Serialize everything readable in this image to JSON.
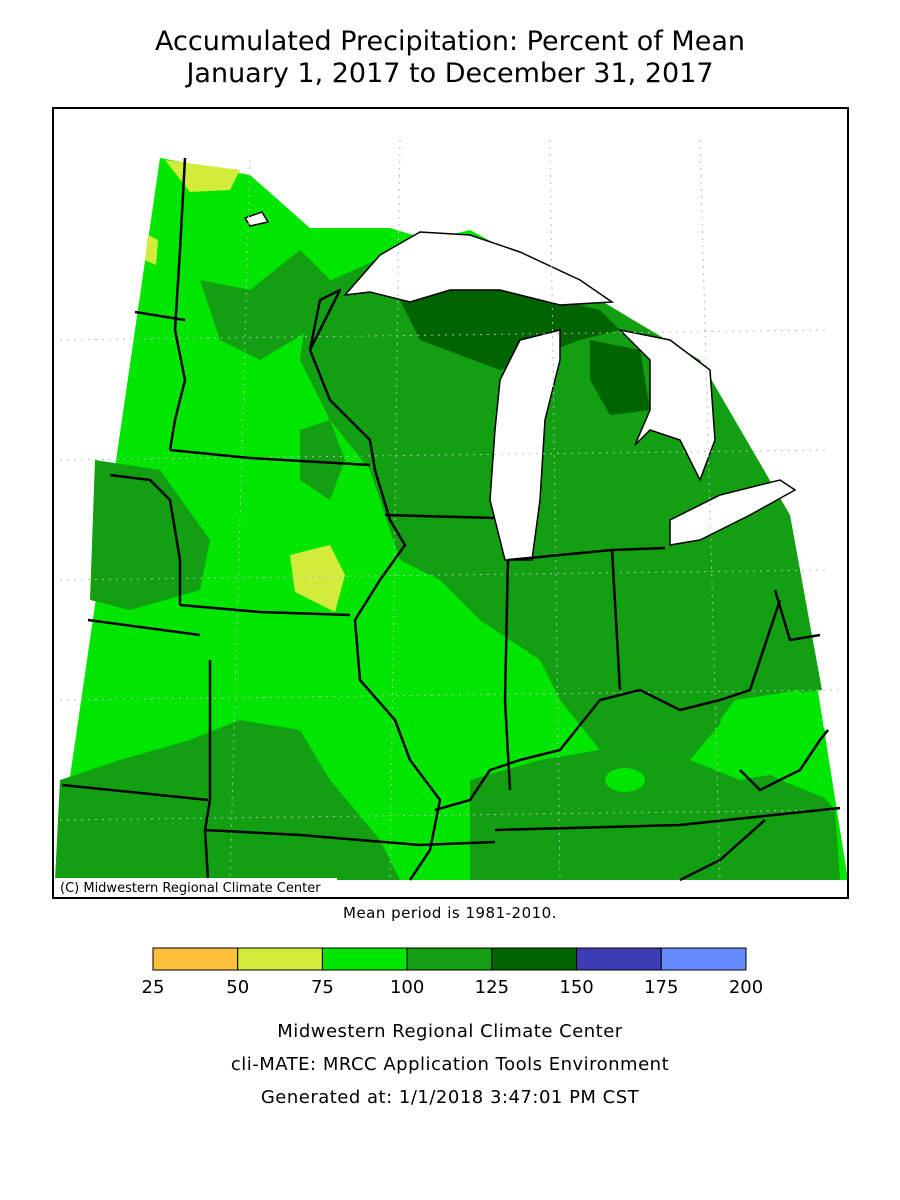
{
  "header": {
    "title": "Accumulated Precipitation: Percent of Mean",
    "subtitle": "January 1, 2017 to December 31, 2017"
  },
  "map": {
    "credit": "(C) Midwestern Regional Climate Center",
    "note": "Mean period is 1981-2010."
  },
  "legend": {
    "bins": [
      25,
      50,
      75,
      100,
      125,
      150,
      175,
      200
    ],
    "colors": [
      "#ffc03c",
      "#d2ec3c",
      "#00e600",
      "#12a012",
      "#006400",
      "#3c3cb4",
      "#648cff"
    ]
  },
  "footer": {
    "lines": [
      "Midwestern Regional Climate Center",
      "cli-MATE: MRCC Application Tools Environment",
      "Generated at: 1/1/2018 3:47:01 PM CST"
    ]
  }
}
